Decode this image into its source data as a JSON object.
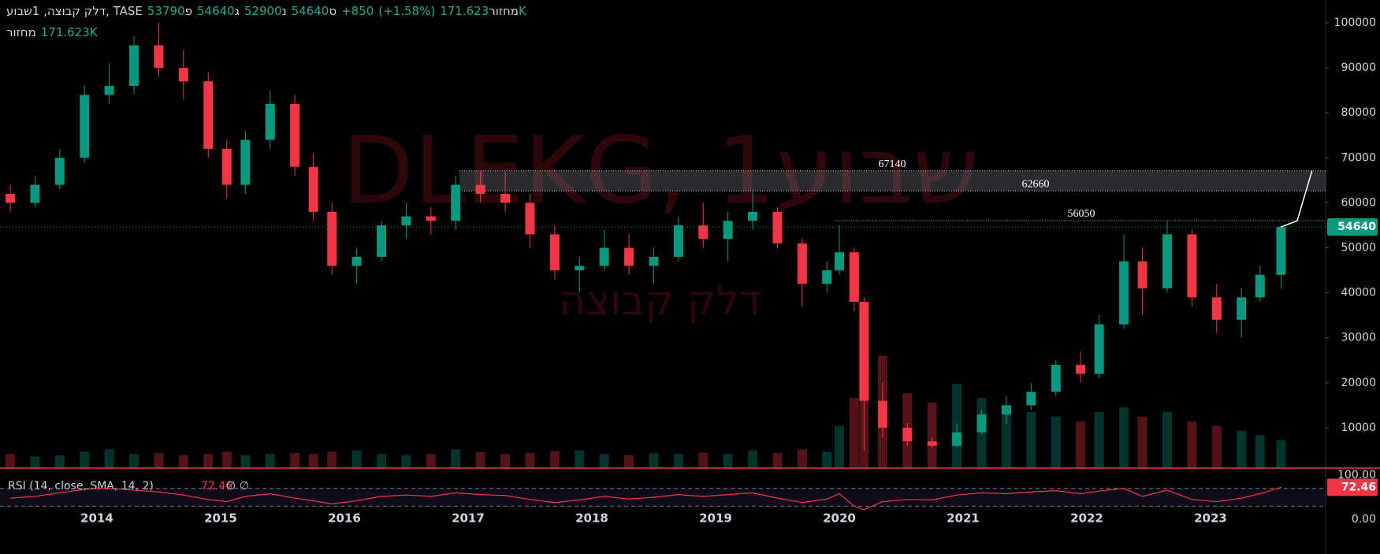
{
  "chart_data": {
    "type": "candlestick",
    "header": {
      "symbol": "דלק קבוצה, 1שבוע, TASE",
      "ohlc": [
        {
          "label": "פ",
          "value": 53790
        },
        {
          "label": "ג",
          "value": 54640
        },
        {
          "label": "נ",
          "value": 52900
        },
        {
          "label": "ס",
          "value": 54640
        }
      ],
      "change": {
        "value": 850,
        "label": "+850"
      },
      "change_pct": {
        "value": 1.58,
        "label": "(+1.58%)"
      },
      "volume_title": "מחזור",
      "volume": {
        "value": 171623,
        "label": "171.623K"
      }
    },
    "watermark": "DLEKG, 1שבוע",
    "watermark_sub": "דלק קבוצה",
    "up_color": "#089981",
    "down_color": "#f23645",
    "x": [
      2013.3,
      2013.5,
      2013.7,
      2013.9,
      2014.1,
      2014.3,
      2014.5,
      2014.7,
      2014.9,
      2015.05,
      2015.2,
      2015.4,
      2015.6,
      2015.75,
      2015.9,
      2016.1,
      2016.3,
      2016.5,
      2016.7,
      2016.9,
      2017.1,
      2017.3,
      2017.5,
      2017.7,
      2017.9,
      2018.1,
      2018.3,
      2018.5,
      2018.7,
      2018.9,
      2019.1,
      2019.3,
      2019.5,
      2019.7,
      2019.9,
      2020.0,
      2020.12,
      2020.2,
      2020.35,
      2020.55,
      2020.75,
      2020.95,
      2021.15,
      2021.35,
      2021.55,
      2021.75,
      2021.95,
      2022.1,
      2022.3,
      2022.45,
      2022.65,
      2022.85,
      2023.05,
      2023.25,
      2023.4,
      2023.57
    ],
    "open": [
      62000,
      60000,
      64000,
      70000,
      84000,
      86000,
      95000,
      90000,
      87000,
      72000,
      64000,
      74000,
      82000,
      68000,
      58000,
      46000,
      48000,
      55000,
      57000,
      56000,
      64000,
      62000,
      60000,
      53000,
      45000,
      46000,
      50000,
      46000,
      48000,
      55000,
      52000,
      56000,
      58000,
      51000,
      42000,
      45000,
      49000,
      38000,
      16000,
      10000,
      7000,
      6000,
      9000,
      13000,
      15000,
      18000,
      24000,
      22000,
      33000,
      47000,
      41000,
      53000,
      39000,
      34000,
      39000,
      44000
    ],
    "high": [
      64000,
      66000,
      72000,
      86000,
      91000,
      97000,
      100000,
      94000,
      89000,
      74000,
      76000,
      85000,
      84000,
      71000,
      60000,
      50000,
      56000,
      60000,
      59000,
      66000,
      67000,
      67000,
      62000,
      55000,
      48000,
      54000,
      53000,
      50000,
      57000,
      60000,
      58000,
      63000,
      59000,
      52000,
      47000,
      55000,
      50000,
      39000,
      20000,
      11000,
      8000,
      11000,
      14000,
      17000,
      20000,
      25000,
      27000,
      35000,
      53000,
      50000,
      56000,
      54000,
      42000,
      41000,
      46000,
      55000
    ],
    "low": [
      58000,
      59000,
      63000,
      69000,
      82000,
      84000,
      88000,
      83000,
      70000,
      61000,
      62000,
      72000,
      66000,
      56000,
      44000,
      42000,
      47000,
      52000,
      53000,
      54000,
      60000,
      58000,
      50000,
      43000,
      40000,
      45000,
      44000,
      42000,
      47000,
      50000,
      47000,
      54000,
      50000,
      37000,
      40000,
      44000,
      36000,
      5000,
      8000,
      6000,
      5500,
      5800,
      8500,
      11000,
      14000,
      17000,
      20000,
      21000,
      32000,
      35000,
      40000,
      37000,
      31000,
      30000,
      38000,
      41000
    ],
    "close": [
      60000,
      64000,
      70000,
      84000,
      86000,
      95000,
      90000,
      87000,
      72000,
      64000,
      74000,
      82000,
      68000,
      58000,
      46000,
      48000,
      55000,
      57000,
      56000,
      64000,
      62000,
      60000,
      53000,
      45000,
      46000,
      50000,
      46000,
      48000,
      55000,
      52000,
      56000,
      58000,
      51000,
      42000,
      45000,
      49000,
      38000,
      16000,
      10000,
      7000,
      6000,
      9000,
      13000,
      15000,
      18000,
      24000,
      22000,
      33000,
      47000,
      41000,
      53000,
      39000,
      34000,
      39000,
      44000,
      54640
    ],
    "volume": [
      300,
      250,
      280,
      350,
      400,
      300,
      320,
      280,
      300,
      350,
      280,
      300,
      320,
      300,
      350,
      380,
      300,
      280,
      300,
      400,
      350,
      300,
      320,
      360,
      380,
      300,
      280,
      320,
      300,
      330,
      300,
      380,
      320,
      400,
      350,
      900,
      1500,
      3200,
      2400,
      1600,
      1400,
      1800,
      1500,
      1300,
      1200,
      1100,
      1000,
      1200,
      1300,
      1100,
      1200,
      1000,
      900,
      800,
      700,
      600
    ],
    "xlim": [
      2013.217,
      2023.93
    ],
    "xticks": [
      2014,
      2015,
      2016,
      2017,
      2018,
      2019,
      2020,
      2021,
      2022,
      2023
    ],
    "ylim": [
      1050,
      105080
    ],
    "yticks": [
      10000,
      20000,
      30000,
      40000,
      50000,
      60000,
      70000,
      80000,
      90000,
      100000
    ],
    "levels": [
      {
        "value": 67140,
        "from": 2016.93
      },
      {
        "value": 62660,
        "from": 2016.93
      },
      {
        "value": 56050,
        "from": 2019.96
      }
    ],
    "projection": {
      "x": [
        2023.57,
        2023.7,
        2023.82
      ],
      "values": [
        54640,
        56000,
        67140
      ]
    },
    "rsi": {
      "title": "RSI (14, close, SMA, 14, 2)",
      "last": 72.46,
      "extras": "∅ ∅",
      "color": "#f23645",
      "values": [
        48,
        52,
        60,
        68,
        70,
        66,
        62,
        55,
        45,
        40,
        52,
        58,
        48,
        42,
        35,
        42,
        52,
        55,
        52,
        60,
        56,
        54,
        45,
        38,
        44,
        52,
        46,
        50,
        56,
        52,
        56,
        60,
        48,
        38,
        46,
        58,
        30,
        22,
        40,
        45,
        44,
        55,
        60,
        58,
        62,
        65,
        58,
        64,
        70,
        52,
        66,
        45,
        40,
        48,
        58,
        72.46
      ],
      "ylim": [
        0,
        100
      ],
      "yticks": [
        {
          "value": 100,
          "label": "100.00"
        },
        {
          "value": 0,
          "label": "0.00"
        }
      ],
      "bands": [
        30,
        70
      ]
    }
  }
}
